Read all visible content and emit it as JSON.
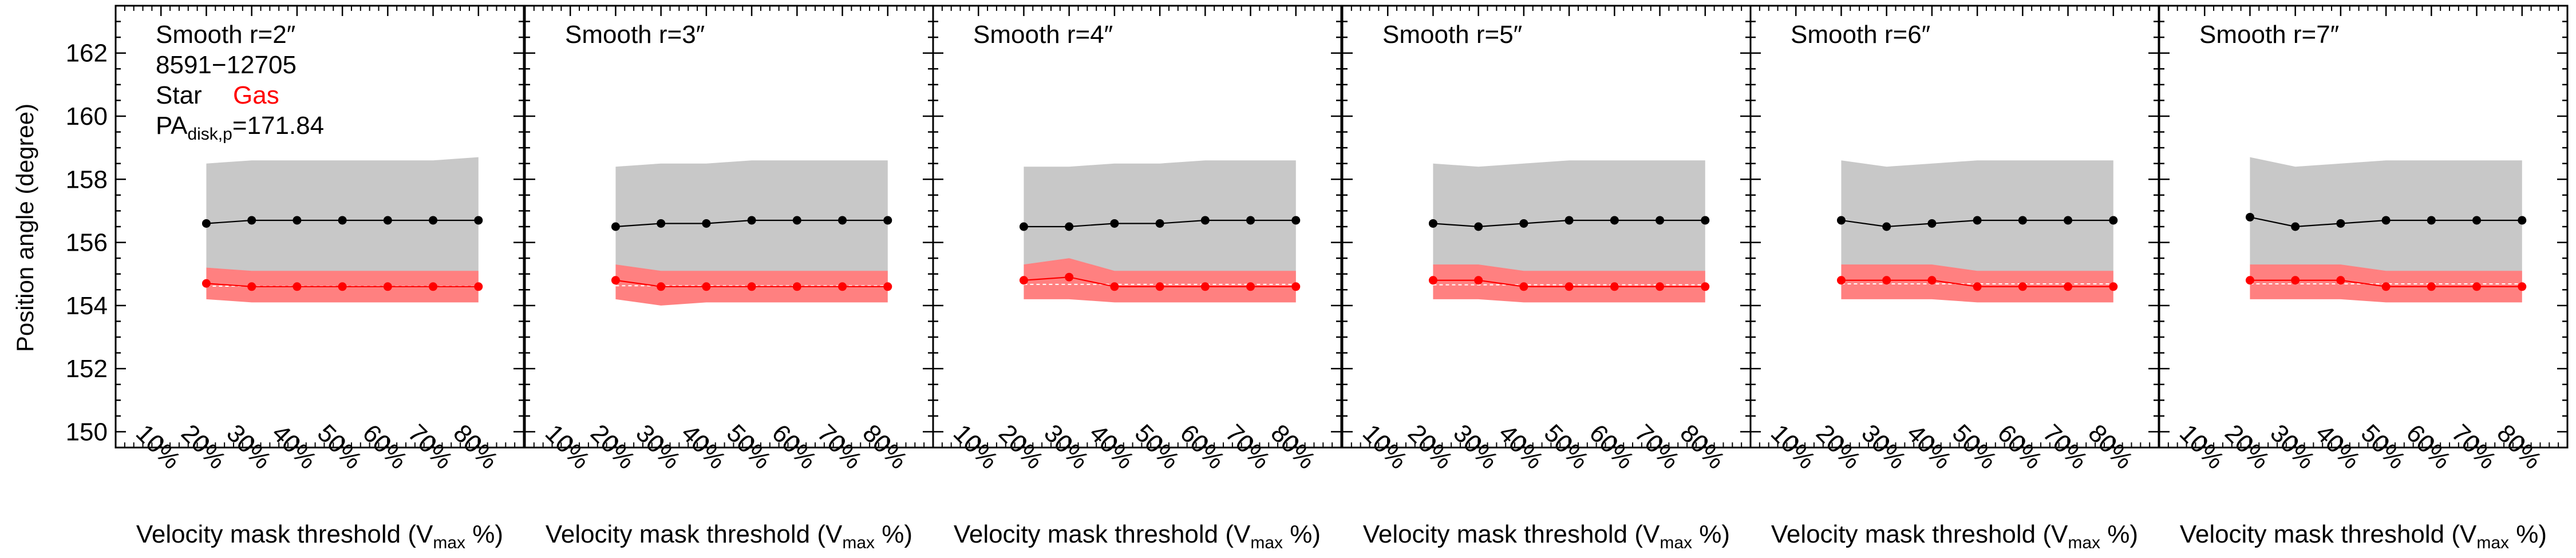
{
  "figure": {
    "ylabel": "Position angle (degree)",
    "xlabel_main": "Velocity mask threshold (V",
    "xlabel_sub": "max",
    "xlabel_tail": " %)",
    "galaxy_id": "8591−12705",
    "legend_star": "Star",
    "legend_gas": "Gas",
    "pa_prefix": "PA",
    "pa_sub": "disk,p",
    "pa_value": "=171.84",
    "colors": {
      "star": "#000000",
      "gas": "#ff0000",
      "star_band": "#c8c8c8",
      "gas_band": "#ff8080",
      "axis": "#000000"
    }
  },
  "chart_data": [
    {
      "type": "line",
      "title": "Smooth r=2″",
      "x": [
        "10%",
        "20%",
        "30%",
        "40%",
        "50%",
        "60%",
        "70%",
        "80%"
      ],
      "ylim": [
        149.5,
        163.5
      ],
      "yticks": [
        150,
        152,
        154,
        156,
        158,
        160,
        162
      ],
      "series": [
        {
          "name": "Star",
          "color": "#000000",
          "values": [
            null,
            156.6,
            156.7,
            156.7,
            156.7,
            156.7,
            156.7,
            156.7
          ],
          "band_upper": [
            null,
            158.5,
            158.6,
            158.6,
            158.6,
            158.6,
            158.6,
            158.7
          ],
          "band_lower": [
            null,
            154.7,
            154.6,
            154.6,
            154.6,
            154.6,
            154.6,
            154.6
          ]
        },
        {
          "name": "Gas",
          "color": "#ff0000",
          "values": [
            null,
            154.7,
            154.6,
            154.6,
            154.6,
            154.6,
            154.6,
            154.6
          ],
          "band_upper": [
            null,
            155.2,
            155.1,
            155.1,
            155.1,
            155.1,
            155.1,
            155.1
          ],
          "band_lower": [
            null,
            154.2,
            154.1,
            154.1,
            154.1,
            154.1,
            154.1,
            154.1
          ]
        }
      ]
    },
    {
      "type": "line",
      "title": "Smooth r=3″",
      "x": [
        "10%",
        "20%",
        "30%",
        "40%",
        "50%",
        "60%",
        "70%",
        "80%"
      ],
      "ylim": [
        149.5,
        163.5
      ],
      "series": [
        {
          "name": "Star",
          "color": "#000000",
          "values": [
            null,
            156.5,
            156.6,
            156.6,
            156.7,
            156.7,
            156.7,
            156.7
          ],
          "band_upper": [
            null,
            158.4,
            158.5,
            158.5,
            158.6,
            158.6,
            158.6,
            158.6
          ],
          "band_lower": [
            null,
            154.8,
            154.6,
            154.6,
            154.6,
            154.6,
            154.6,
            154.6
          ]
        },
        {
          "name": "Gas",
          "color": "#ff0000",
          "values": [
            null,
            154.8,
            154.6,
            154.6,
            154.6,
            154.6,
            154.6,
            154.6
          ],
          "band_upper": [
            null,
            155.3,
            155.1,
            155.1,
            155.1,
            155.1,
            155.1,
            155.1
          ],
          "band_lower": [
            null,
            154.2,
            154.0,
            154.1,
            154.1,
            154.1,
            154.1,
            154.1
          ]
        }
      ]
    },
    {
      "type": "line",
      "title": "Smooth r=4″",
      "x": [
        "10%",
        "20%",
        "30%",
        "40%",
        "50%",
        "60%",
        "70%",
        "80%"
      ],
      "ylim": [
        149.5,
        163.5
      ],
      "series": [
        {
          "name": "Star",
          "color": "#000000",
          "values": [
            null,
            156.5,
            156.5,
            156.6,
            156.6,
            156.7,
            156.7,
            156.7
          ],
          "band_upper": [
            null,
            158.4,
            158.4,
            158.5,
            158.5,
            158.6,
            158.6,
            158.6
          ],
          "band_lower": [
            null,
            154.8,
            154.9,
            154.6,
            154.6,
            154.6,
            154.6,
            154.6
          ]
        },
        {
          "name": "Gas",
          "color": "#ff0000",
          "values": [
            null,
            154.8,
            154.9,
            154.6,
            154.6,
            154.6,
            154.6,
            154.6
          ],
          "band_upper": [
            null,
            155.3,
            155.5,
            155.1,
            155.1,
            155.1,
            155.1,
            155.1
          ],
          "band_lower": [
            null,
            154.2,
            154.2,
            154.1,
            154.1,
            154.1,
            154.1,
            154.1
          ]
        }
      ]
    },
    {
      "type": "line",
      "title": "Smooth r=5″",
      "x": [
        "10%",
        "20%",
        "30%",
        "40%",
        "50%",
        "60%",
        "70%",
        "80%"
      ],
      "ylim": [
        149.5,
        163.5
      ],
      "series": [
        {
          "name": "Star",
          "color": "#000000",
          "values": [
            null,
            156.6,
            156.5,
            156.6,
            156.7,
            156.7,
            156.7,
            156.7
          ],
          "band_upper": [
            null,
            158.5,
            158.4,
            158.5,
            158.6,
            158.6,
            158.6,
            158.6
          ],
          "band_lower": [
            null,
            154.8,
            154.8,
            154.6,
            154.6,
            154.6,
            154.6,
            154.6
          ]
        },
        {
          "name": "Gas",
          "color": "#ff0000",
          "values": [
            null,
            154.8,
            154.8,
            154.6,
            154.6,
            154.6,
            154.6,
            154.6
          ],
          "band_upper": [
            null,
            155.3,
            155.3,
            155.1,
            155.1,
            155.1,
            155.1,
            155.1
          ],
          "band_lower": [
            null,
            154.2,
            154.2,
            154.1,
            154.1,
            154.1,
            154.1,
            154.1
          ]
        }
      ]
    },
    {
      "type": "line",
      "title": "Smooth r=6″",
      "x": [
        "10%",
        "20%",
        "30%",
        "40%",
        "50%",
        "60%",
        "70%",
        "80%"
      ],
      "ylim": [
        149.5,
        163.5
      ],
      "series": [
        {
          "name": "Star",
          "color": "#000000",
          "values": [
            null,
            156.7,
            156.5,
            156.6,
            156.7,
            156.7,
            156.7,
            156.7
          ],
          "band_upper": [
            null,
            158.6,
            158.4,
            158.5,
            158.6,
            158.6,
            158.6,
            158.6
          ],
          "band_lower": [
            null,
            154.8,
            154.8,
            154.8,
            154.6,
            154.6,
            154.6,
            154.6
          ]
        },
        {
          "name": "Gas",
          "color": "#ff0000",
          "values": [
            null,
            154.8,
            154.8,
            154.8,
            154.6,
            154.6,
            154.6,
            154.6
          ],
          "band_upper": [
            null,
            155.3,
            155.3,
            155.3,
            155.1,
            155.1,
            155.1,
            155.1
          ],
          "band_lower": [
            null,
            154.2,
            154.2,
            154.2,
            154.1,
            154.1,
            154.1,
            154.1
          ]
        }
      ]
    },
    {
      "type": "line",
      "title": "Smooth r=7″",
      "x": [
        "10%",
        "20%",
        "30%",
        "40%",
        "50%",
        "60%",
        "70%",
        "80%"
      ],
      "ylim": [
        149.5,
        163.5
      ],
      "series": [
        {
          "name": "Star",
          "color": "#000000",
          "values": [
            null,
            156.8,
            156.5,
            156.6,
            156.7,
            156.7,
            156.7,
            156.7
          ],
          "band_upper": [
            null,
            158.7,
            158.4,
            158.5,
            158.6,
            158.6,
            158.6,
            158.6
          ],
          "band_lower": [
            null,
            154.8,
            154.8,
            154.8,
            154.6,
            154.6,
            154.6,
            154.6
          ]
        },
        {
          "name": "Gas",
          "color": "#ff0000",
          "values": [
            null,
            154.8,
            154.8,
            154.8,
            154.6,
            154.6,
            154.6,
            154.6
          ],
          "band_upper": [
            null,
            155.3,
            155.3,
            155.3,
            155.1,
            155.1,
            155.1,
            155.1
          ],
          "band_lower": [
            null,
            154.2,
            154.2,
            154.2,
            154.1,
            154.1,
            154.1,
            154.1
          ]
        }
      ]
    }
  ]
}
